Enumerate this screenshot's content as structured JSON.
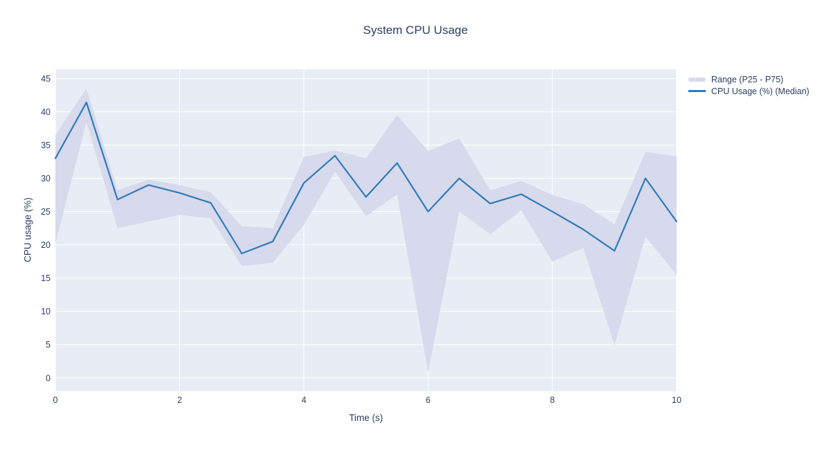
{
  "chart_data": {
    "type": "line",
    "title": "System CPU Usage",
    "xlabel": "Time (s)",
    "ylabel": "CPU usage (%)",
    "x": [
      0,
      0.5,
      1,
      1.5,
      2,
      2.5,
      3,
      3.5,
      4,
      4.5,
      5,
      5.5,
      6,
      6.5,
      7,
      7.5,
      8,
      8.5,
      9,
      9.5,
      10
    ],
    "series": [
      {
        "name": "Range (P25 - P75)",
        "type": "band",
        "upper": [
          36.5,
          43.5,
          28.2,
          29.8,
          29,
          27.9,
          22.8,
          22.5,
          33.2,
          34.2,
          33,
          39.5,
          34.1,
          36,
          28.2,
          29.6,
          27.5,
          26.1,
          23.1,
          34,
          33.3
        ],
        "lower": [
          20.2,
          38.5,
          22.5,
          23.5,
          24.5,
          24,
          16.8,
          17.3,
          23,
          31,
          24.3,
          27.6,
          0.8,
          25,
          21.6,
          25.2,
          17.5,
          19.5,
          4.9,
          21.2,
          15.5
        ],
        "color": "#d7d9ec"
      },
      {
        "name": "CPU Usage (%) (Median)",
        "type": "line",
        "values": [
          33,
          41.4,
          26.8,
          29,
          27.8,
          26.3,
          18.7,
          20.5,
          29.3,
          33.4,
          27.2,
          32.3,
          25,
          30,
          26.2,
          27.6,
          25,
          22.3,
          19.1,
          30,
          23.5
        ],
        "color": "#2d7bb8"
      }
    ],
    "xlim": [
      0,
      10
    ],
    "ylim": [
      -2,
      46.4
    ],
    "x_ticks": [
      0,
      2,
      4,
      6,
      8,
      10
    ],
    "y_ticks": [
      0,
      5,
      10,
      15,
      20,
      25,
      30,
      35,
      40,
      45
    ],
    "grid": true,
    "legend_position": "right",
    "colors": {
      "panel_bg": "#e8edf5",
      "gridline": "#ffffff",
      "text": "#2a3f5f",
      "band": "#d7d9ec",
      "median_line": "#2d7bb8"
    }
  }
}
